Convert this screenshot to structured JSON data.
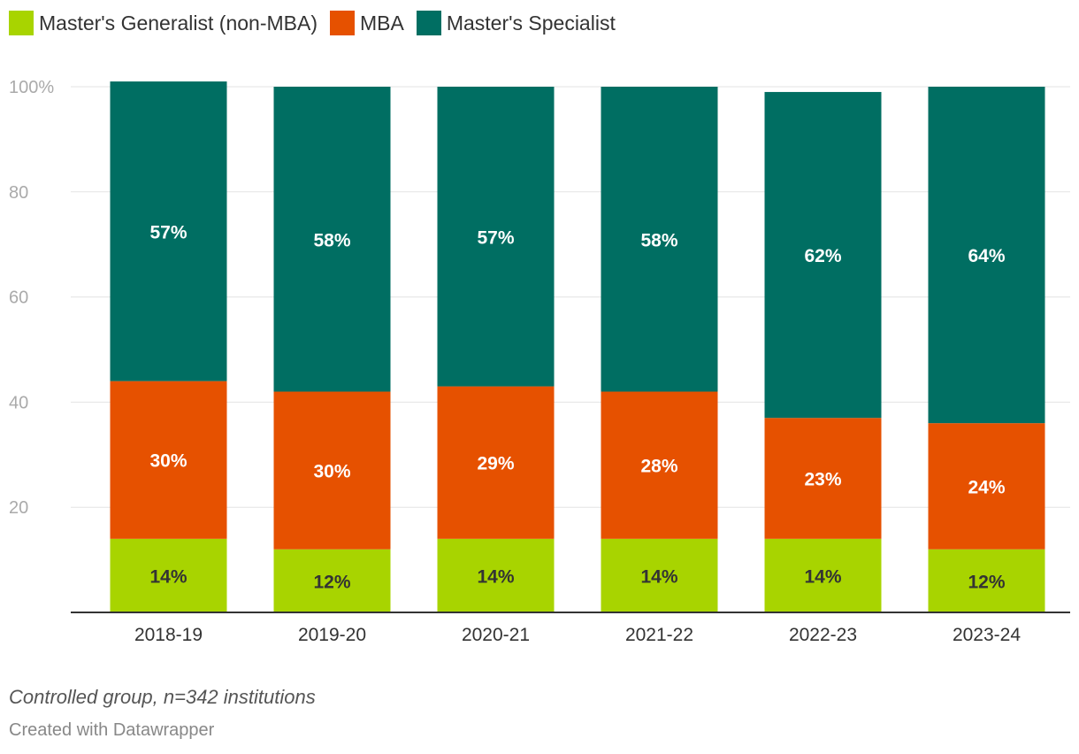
{
  "chart_data": {
    "type": "bar",
    "stacked": true,
    "categories": [
      "2018-19",
      "2019-20",
      "2020-21",
      "2021-22",
      "2022-23",
      "2023-24"
    ],
    "series": [
      {
        "name": "Master's Generalist (non-MBA)",
        "color": "#a8d400",
        "values": [
          14,
          12,
          14,
          14,
          14,
          12
        ],
        "labels": [
          "14%",
          "12%",
          "14%",
          "14%",
          "14%",
          "12%"
        ]
      },
      {
        "name": "MBA",
        "color": "#e65100",
        "values": [
          30,
          30,
          29,
          28,
          23,
          24
        ],
        "labels": [
          "30%",
          "30%",
          "29%",
          "28%",
          "23%",
          "24%"
        ]
      },
      {
        "name": "Master's Specialist",
        "color": "#006e62",
        "values": [
          57,
          58,
          57,
          58,
          62,
          64
        ],
        "labels": [
          "57%",
          "58%",
          "57%",
          "58%",
          "62%",
          "64%"
        ]
      }
    ],
    "ylim": [
      0,
      100
    ],
    "yticks": [
      20,
      40,
      60,
      80,
      100
    ],
    "ytick_labels": [
      "20",
      "40",
      "60",
      "80",
      "100%"
    ],
    "grid": true,
    "legend_position": "top-left"
  },
  "footer": {
    "note": "Controlled group, n=342 institutions",
    "credit": "Created with Datawrapper"
  }
}
